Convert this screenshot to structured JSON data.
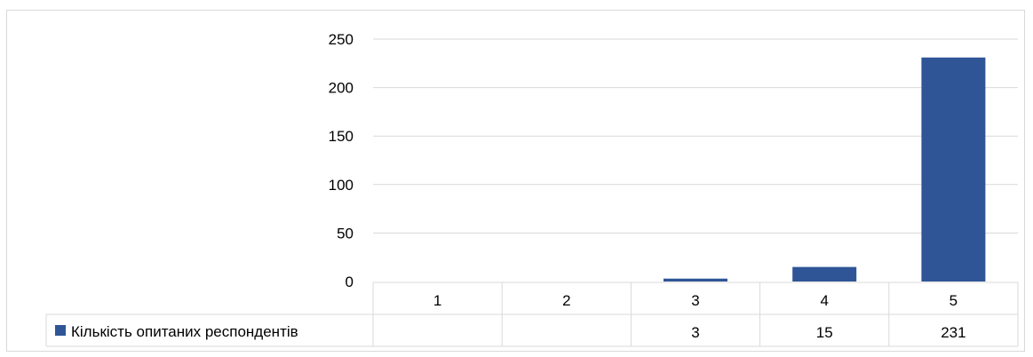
{
  "chart_data": {
    "type": "bar",
    "categories": [
      "1",
      "2",
      "3",
      "4",
      "5"
    ],
    "series": [
      {
        "name": "Кількість опитаних респондентів",
        "values": [
          null,
          null,
          3,
          15,
          231
        ],
        "color": "#2f5597"
      }
    ],
    "table_values": [
      "",
      "",
      "3",
      "15",
      "231"
    ],
    "yticks": [
      "0",
      "50",
      "100",
      "150",
      "200",
      "250"
    ],
    "ylim": [
      0,
      250
    ],
    "grid": true,
    "legend": "data-table-left"
  }
}
